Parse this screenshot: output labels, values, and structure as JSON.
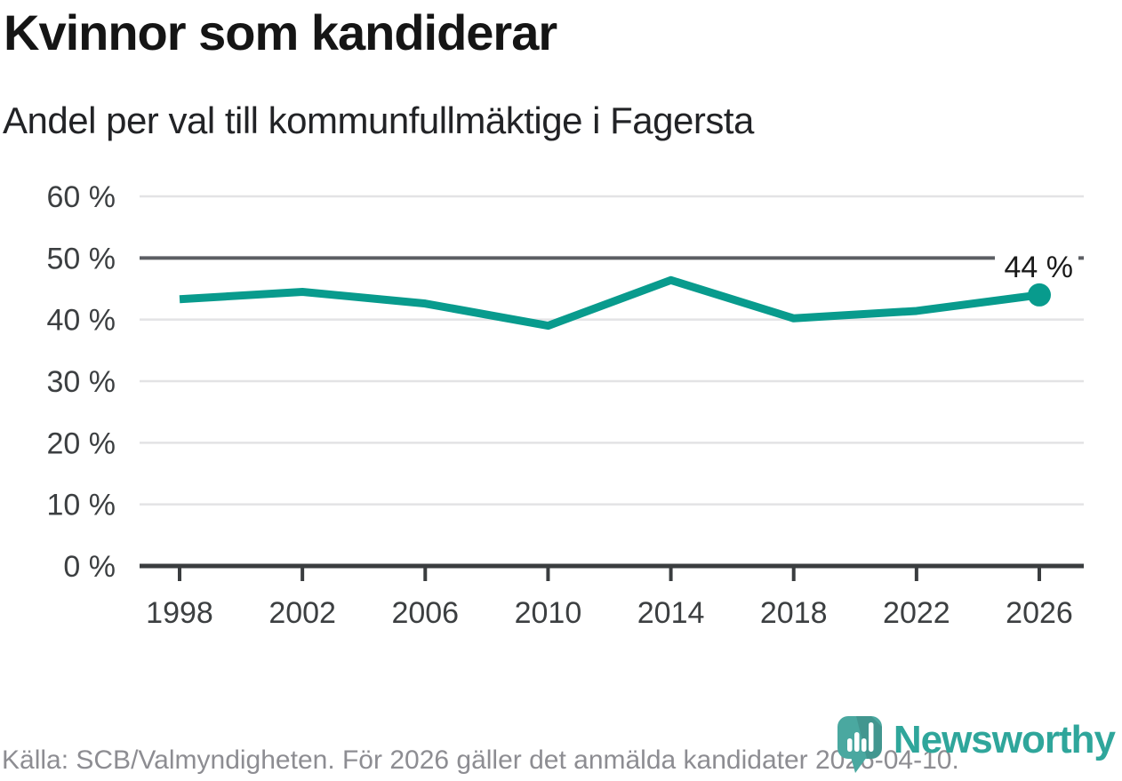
{
  "title": "Kvinnor som kandiderar",
  "subtitle": "Andel per val till kommunfullmäktige i Fagersta",
  "footer": {
    "source": "Källa: SCB/Valmyndigheten. För 2026 gäller det anmälda kandidater 2026-04-10.",
    "brand": "Newsworthy"
  },
  "colors": {
    "line": "#089b8d",
    "marker": "#089b8d",
    "grid": "#e3e3e5",
    "grid_emphasis": "#5c5e63",
    "axis": "#3a3d3f",
    "tick_text": "#3c3f41",
    "muted_text": "#8d8d92",
    "brand_teal": "#2fa69b",
    "brand_icon": "#4aa8a0"
  },
  "chart_data": {
    "type": "line",
    "title": "Kvinnor som kandiderar",
    "subtitle": "Andel per val till kommunfullmäktige i Fagersta",
    "unit": "%",
    "x": [
      1998,
      2002,
      2006,
      2010,
      2014,
      2018,
      2022,
      2026
    ],
    "xtick_labels": [
      "1998",
      "2002",
      "2006",
      "2010",
      "2014",
      "2018",
      "2022",
      "2026"
    ],
    "values": [
      43.3,
      44.5,
      42.6,
      39.0,
      46.4,
      40.2,
      41.4,
      44.0
    ],
    "ytick_labels": [
      "0 %",
      "10 %",
      "20 %",
      "30 %",
      "40 %",
      "50 %",
      "60 %"
    ],
    "ylim": [
      0,
      60
    ],
    "ytick_step": 10,
    "grid": "horizontal",
    "emphasized_gridline": 50,
    "end_label": "44 %",
    "legend": "none"
  }
}
